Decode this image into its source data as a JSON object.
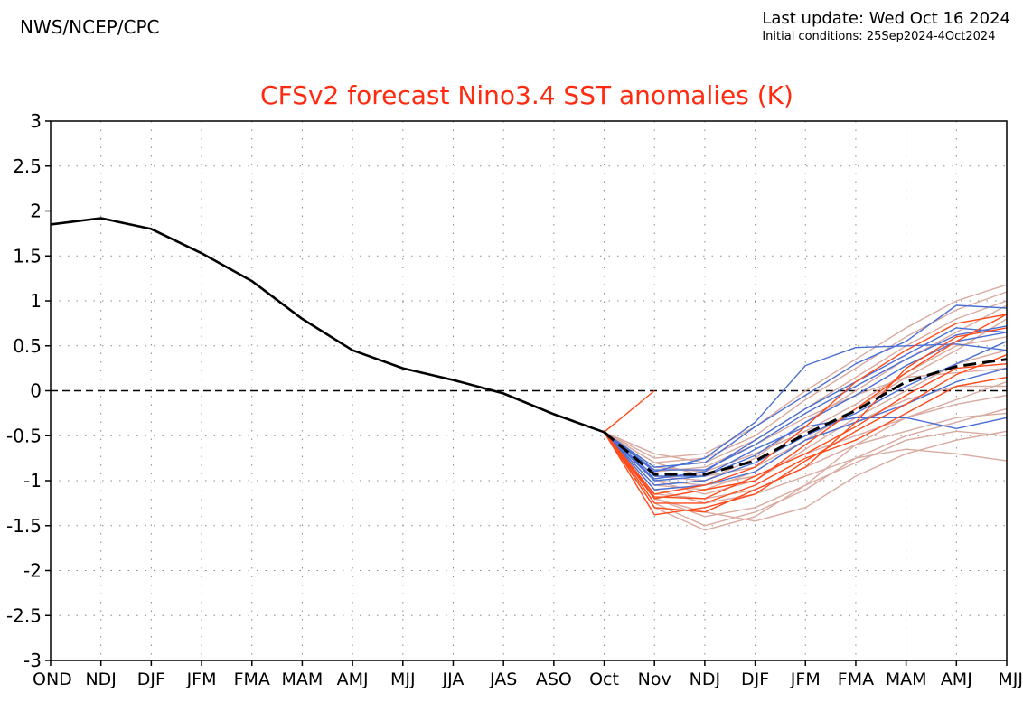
{
  "header": {
    "source": "NWS/NCEP/CPC",
    "last_update": "Last update: Wed Oct 16 2024",
    "initial_conditions": "Initial conditions: 25Sep2024-4Oct2024"
  },
  "chart_data": {
    "type": "line",
    "title": "CFSv2 forecast Nino3.4 SST anomalies (K)",
    "title_color": "#ff2a10",
    "xlabel": "",
    "ylabel": "",
    "categories": [
      "OND",
      "NDJ",
      "DJF",
      "JFM",
      "FMA",
      "MAM",
      "AMJ",
      "MJJ",
      "JJA",
      "JAS",
      "ASO",
      "Oct",
      "Nov",
      "NDJ",
      "DJF",
      "JFM",
      "FMA",
      "MAM",
      "AMJ",
      "MJJ"
    ],
    "yticks": [
      "3",
      "2.5",
      "2",
      "1.5",
      "1",
      "0.5",
      "0",
      "-0.5",
      "-1",
      "-1.5",
      "-2",
      "-2.5",
      "-3"
    ],
    "ylim": [
      -3,
      3
    ],
    "grid": true,
    "zero_line": "dashed",
    "observed": {
      "color": "#000000",
      "values": [
        1.85,
        1.92,
        1.8,
        1.53,
        1.22,
        0.8,
        0.45,
        0.25,
        0.12,
        -0.03,
        -0.26,
        -0.46
      ]
    },
    "ensemble_mean": {
      "color": "#000000",
      "style": "dashed",
      "start_index": 11,
      "values": [
        -0.46,
        -0.93,
        -0.93,
        -0.78,
        -0.48,
        -0.22,
        0.1,
        0.27,
        0.35
      ]
    },
    "members": [
      {
        "color": "#ff4a1a",
        "start_index": 11,
        "values": [
          -0.46,
          0.0
        ]
      },
      {
        "color": "#4a6fd4",
        "start_index": 11,
        "values": [
          -0.46,
          -0.88,
          -0.88,
          -0.6,
          -0.25,
          0.05,
          0.35,
          0.62,
          0.72
        ]
      },
      {
        "color": "#4a6fd4",
        "start_index": 11,
        "values": [
          -0.46,
          -0.95,
          -0.95,
          -0.72,
          -0.35,
          -0.05,
          0.28,
          0.55,
          0.65
        ]
      },
      {
        "color": "#4a6fd4",
        "start_index": 11,
        "values": [
          -0.46,
          -0.85,
          -0.8,
          -0.4,
          -0.05,
          0.3,
          0.55,
          0.95,
          0.92
        ]
      },
      {
        "color": "#4a6fd4",
        "start_index": 11,
        "values": [
          -0.46,
          -1.0,
          -0.95,
          -0.65,
          -0.4,
          -0.3,
          -0.3,
          -0.42,
          -0.3
        ]
      },
      {
        "color": "#4a6fd4",
        "start_index": 11,
        "values": [
          -0.46,
          -0.9,
          -0.75,
          -0.35,
          0.28,
          0.48,
          0.5,
          0.52,
          0.45
        ]
      },
      {
        "color": "#4a6fd4",
        "start_index": 11,
        "values": [
          -0.46,
          -1.05,
          -1.0,
          -0.8,
          -0.5,
          -0.25,
          0.05,
          0.3,
          0.55
        ]
      },
      {
        "color": "#4a6fd4",
        "start_index": 11,
        "values": [
          -0.46,
          -0.98,
          -0.9,
          -0.55,
          -0.2,
          0.1,
          0.4,
          0.7,
          0.65
        ]
      },
      {
        "color": "#4a6fd4",
        "start_index": 11,
        "values": [
          -0.46,
          -1.1,
          -1.05,
          -0.9,
          -0.55,
          -0.35,
          -0.15,
          0.1,
          0.25
        ]
      },
      {
        "color": "#ff4a1a",
        "start_index": 11,
        "values": [
          -0.46,
          -1.38,
          -1.3,
          -1.15,
          -0.78,
          -0.45,
          -0.15,
          0.18,
          0.4
        ]
      },
      {
        "color": "#ff4a1a",
        "start_index": 11,
        "values": [
          -0.46,
          -1.2,
          -1.1,
          -1.0,
          -0.6,
          -0.2,
          0.2,
          0.55,
          0.85
        ]
      },
      {
        "color": "#ff4a1a",
        "start_index": 11,
        "values": [
          -0.46,
          -1.15,
          -1.05,
          -0.85,
          -0.4,
          0.1,
          0.45,
          0.75,
          0.85
        ]
      },
      {
        "color": "#ff4a1a",
        "start_index": 11,
        "values": [
          -0.46,
          -1.25,
          -1.25,
          -1.05,
          -0.75,
          -0.55,
          -0.25,
          0.05,
          0.15
        ]
      },
      {
        "color": "#ff4a1a",
        "start_index": 11,
        "values": [
          -0.46,
          -1.3,
          -1.35,
          -1.1,
          -0.85,
          -0.35,
          0.25,
          0.6,
          0.7
        ]
      },
      {
        "color": "#ff4a1a",
        "start_index": 11,
        "values": [
          -0.46,
          -1.18,
          -1.2,
          -0.95,
          -0.7,
          -0.4,
          -0.05,
          0.25,
          0.3
        ]
      },
      {
        "color": "#d9aaa0",
        "start_index": 11,
        "values": [
          -0.46,
          -0.75,
          -0.7,
          -0.4,
          0.0,
          0.35,
          0.7,
          1.0,
          1.18
        ]
      },
      {
        "color": "#d9aaa0",
        "start_index": 11,
        "values": [
          -0.46,
          -0.8,
          -0.75,
          -0.5,
          -0.1,
          0.25,
          0.6,
          0.9,
          1.1
        ]
      },
      {
        "color": "#d9aaa0",
        "start_index": 11,
        "values": [
          -0.46,
          -0.95,
          -1.0,
          -0.75,
          -0.35,
          0.0,
          0.35,
          0.65,
          0.95
        ]
      },
      {
        "color": "#d9aaa0",
        "start_index": 11,
        "values": [
          -0.46,
          -1.05,
          -1.1,
          -0.9,
          -0.55,
          -0.2,
          0.15,
          0.45,
          0.8
        ]
      },
      {
        "color": "#d9aaa0",
        "start_index": 11,
        "values": [
          -0.46,
          -1.1,
          -1.25,
          -1.15,
          -0.95,
          -0.75,
          -0.5,
          -0.35,
          -0.2
        ]
      },
      {
        "color": "#d9aaa0",
        "start_index": 11,
        "values": [
          -0.46,
          -1.2,
          -1.35,
          -1.45,
          -1.3,
          -0.95,
          -0.7,
          -0.55,
          -0.45
        ]
      },
      {
        "color": "#d9aaa0",
        "start_index": 11,
        "values": [
          -0.46,
          -1.25,
          -1.5,
          -1.35,
          -1.1,
          -0.75,
          -0.65,
          -0.7,
          -0.78
        ]
      },
      {
        "color": "#d9aaa0",
        "start_index": 11,
        "values": [
          -0.46,
          -1.3,
          -1.55,
          -1.4,
          -1.05,
          -0.6,
          -0.3,
          -0.1,
          0.1
        ]
      },
      {
        "color": "#d9aaa0",
        "start_index": 11,
        "values": [
          -0.46,
          -1.0,
          -1.05,
          -0.95,
          -0.7,
          -0.5,
          -0.3,
          -0.15,
          -0.05
        ]
      },
      {
        "color": "#d9aaa0",
        "start_index": 11,
        "values": [
          -0.46,
          -0.85,
          -0.9,
          -0.7,
          -0.45,
          -0.15,
          0.2,
          0.5,
          0.6
        ]
      },
      {
        "color": "#d9aaa0",
        "start_index": 11,
        "values": [
          -0.46,
          -0.9,
          -0.85,
          -0.6,
          -0.3,
          -0.05,
          0.15,
          0.2,
          0.25
        ]
      },
      {
        "color": "#d9aaa0",
        "start_index": 11,
        "values": [
          -0.46,
          -1.15,
          -1.2,
          -1.1,
          -0.85,
          -0.6,
          -0.45,
          -0.3,
          -0.25
        ]
      },
      {
        "color": "#d9aaa0",
        "start_index": 11,
        "values": [
          -0.46,
          -0.7,
          -0.8,
          -0.55,
          -0.2,
          0.15,
          0.5,
          0.8,
          1.0
        ]
      },
      {
        "color": "#d9aaa0",
        "start_index": 11,
        "values": [
          -0.46,
          -1.0,
          -1.15,
          -1.0,
          -0.65,
          -0.3,
          0.0,
          0.3,
          0.45
        ]
      },
      {
        "color": "#d9aaa0",
        "start_index": 11,
        "values": [
          -0.46,
          -1.2,
          -1.4,
          -1.3,
          -1.05,
          -0.8,
          -0.55,
          -0.45,
          -0.5
        ]
      },
      {
        "color": "#d9aaa0",
        "start_index": 11,
        "values": [
          -0.46,
          -0.8,
          -0.95,
          -0.85,
          -0.55,
          -0.35,
          -0.1,
          0.05,
          0.05
        ]
      }
    ]
  }
}
